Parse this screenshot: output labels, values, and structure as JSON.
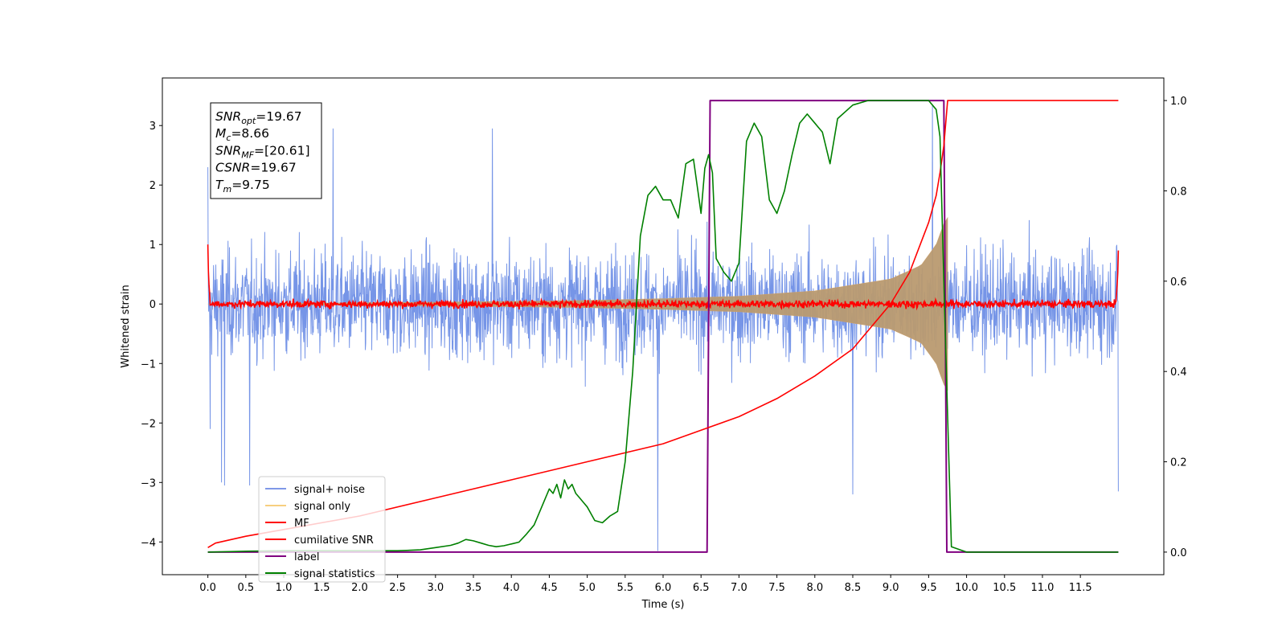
{
  "chart_data": {
    "type": "line",
    "xlabel": "Time (s)",
    "ylabel": "Whitened strain",
    "xlim": [
      -0.6,
      12.6
    ],
    "ylim": [
      -4.55,
      3.8
    ],
    "y2lim": [
      -0.05,
      1.05
    ],
    "x_ticks": [
      0.0,
      0.5,
      1.0,
      1.5,
      2.0,
      2.5,
      3.0,
      3.5,
      4.0,
      4.5,
      5.0,
      5.5,
      6.0,
      6.5,
      7.0,
      7.5,
      8.0,
      8.5,
      9.0,
      9.5,
      10.0,
      10.5,
      11.0,
      11.5
    ],
    "x_tick_labels": [
      "0.0",
      "0.5",
      "1.0",
      "1.5",
      "2.0",
      "2.5",
      "3.0",
      "3.5",
      "4.0",
      "4.5",
      "5.0",
      "5.5",
      "6.0",
      "6.5",
      "7.0",
      "7.5",
      "8.0",
      "8.5",
      "9.0",
      "9.5",
      "10.0",
      "10.5",
      "11.0",
      "11.5"
    ],
    "y_ticks": [
      3,
      2,
      1,
      0,
      -1,
      -2,
      -3,
      -4
    ],
    "y_tick_labels": [
      "3",
      "2",
      "1",
      "0",
      "−1",
      "−2",
      "−3",
      "−4"
    ],
    "y2_ticks": [
      1.0,
      0.8,
      0.6,
      0.4,
      0.2,
      0.0
    ],
    "y2_tick_labels": [
      "1.0",
      "0.8",
      "0.6",
      "0.4",
      "0.2",
      "0.0"
    ],
    "legend_position": "lower-left",
    "grid": false,
    "annotation_box": [
      {
        "sym": "SNR",
        "sub": "opt",
        "value": "=19.67"
      },
      {
        "sym": "M",
        "sub": "c",
        "value": "=8.66"
      },
      {
        "sym": "SNR",
        "sub": "MF",
        "value": "=[20.61]"
      },
      {
        "sym": "CSNR",
        "sub": "",
        "value": "=19.67"
      },
      {
        "sym": "T",
        "sub": "m",
        "value": "=9.75"
      }
    ],
    "series": [
      {
        "name": "signal+ noise",
        "color": "#6f8fe6",
        "axis": "left",
        "kind": "noise",
        "x_range": [
          0.0,
          12.0
        ],
        "envelope_typical": [
          -1.6,
          1.6
        ],
        "extremes": [
          [
            0.0,
            2.3
          ],
          [
            0.03,
            -2.1
          ],
          [
            0.18,
            -3.0
          ],
          [
            0.22,
            -3.05
          ],
          [
            0.55,
            -3.05
          ],
          [
            1.65,
            2.95
          ],
          [
            3.75,
            2.95
          ],
          [
            5.93,
            3.35
          ],
          [
            5.93,
            -4.15
          ],
          [
            9.55,
            3.35
          ],
          [
            8.5,
            -3.2
          ],
          [
            12.0,
            -3.15
          ]
        ]
      },
      {
        "name": "signal only",
        "color": "#f5c261",
        "axis": "left",
        "kind": "chirp",
        "x_range": [
          0.0,
          9.75
        ],
        "envelope": [
          [
            0.0,
            0.0
          ],
          [
            3.0,
            0.03
          ],
          [
            5.0,
            0.06
          ],
          [
            6.0,
            0.09
          ],
          [
            7.0,
            0.13
          ],
          [
            8.0,
            0.22
          ],
          [
            9.0,
            0.42
          ],
          [
            9.4,
            0.65
          ],
          [
            9.6,
            1.0
          ],
          [
            9.7,
            1.35
          ],
          [
            9.75,
            1.45
          ]
        ]
      },
      {
        "name": "MF",
        "color": "#ff0000",
        "axis": "left",
        "kind": "mf",
        "x": [
          0.0,
          0.01,
          0.03,
          11.97,
          11.99,
          12.0
        ],
        "y": [
          1.0,
          0.4,
          0.05,
          0.05,
          0.4,
          0.9
        ],
        "noise_amplitude": 0.05
      },
      {
        "name": "cumilative SNR",
        "color": "#ff0000",
        "axis": "right",
        "x": [
          0.0,
          0.1,
          0.5,
          1.0,
          2.0,
          3.0,
          4.0,
          5.0,
          6.0,
          6.5,
          7.0,
          7.5,
          8.0,
          8.5,
          9.0,
          9.25,
          9.5,
          9.6,
          9.65,
          9.7,
          9.75,
          12.0
        ],
        "y": [
          0.01,
          0.02,
          0.035,
          0.05,
          0.08,
          0.12,
          0.16,
          0.2,
          0.24,
          0.27,
          0.3,
          0.34,
          0.39,
          0.45,
          0.55,
          0.62,
          0.73,
          0.79,
          0.84,
          0.9,
          1.0,
          1.0
        ]
      },
      {
        "name": "label",
        "color": "#800080",
        "axis": "right",
        "x": [
          0.0,
          6.58,
          6.62,
          9.7,
          9.74,
          12.0
        ],
        "y": [
          0.0,
          0.0,
          1.0,
          1.0,
          0.0,
          0.0
        ]
      },
      {
        "name": "signal statistics",
        "color": "#008000",
        "axis": "right",
        "x": [
          0.0,
          0.5,
          1.0,
          1.5,
          2.0,
          2.5,
          2.8,
          3.0,
          3.2,
          3.3,
          3.4,
          3.5,
          3.6,
          3.7,
          3.8,
          3.9,
          4.0,
          4.1,
          4.2,
          4.3,
          4.4,
          4.5,
          4.55,
          4.6,
          4.65,
          4.7,
          4.75,
          4.8,
          4.85,
          4.9,
          4.95,
          5.0,
          5.1,
          5.2,
          5.3,
          5.4,
          5.5,
          5.6,
          5.7,
          5.8,
          5.9,
          6.0,
          6.1,
          6.2,
          6.3,
          6.4,
          6.5,
          6.55,
          6.6,
          6.65,
          6.7,
          6.8,
          6.9,
          7.0,
          7.1,
          7.2,
          7.3,
          7.4,
          7.5,
          7.6,
          7.7,
          7.8,
          7.9,
          8.0,
          8.1,
          8.2,
          8.3,
          8.5,
          8.7,
          9.0,
          9.3,
          9.5,
          9.6,
          9.65,
          9.7,
          9.75,
          9.8,
          10.0,
          12.0
        ],
        "y": [
          0.0,
          0.002,
          0.003,
          0.003,
          0.003,
          0.003,
          0.005,
          0.01,
          0.015,
          0.02,
          0.028,
          0.025,
          0.02,
          0.015,
          0.012,
          0.014,
          0.018,
          0.022,
          0.04,
          0.06,
          0.1,
          0.14,
          0.13,
          0.15,
          0.12,
          0.16,
          0.14,
          0.15,
          0.13,
          0.12,
          0.11,
          0.1,
          0.07,
          0.065,
          0.08,
          0.09,
          0.2,
          0.4,
          0.7,
          0.79,
          0.81,
          0.78,
          0.78,
          0.74,
          0.86,
          0.87,
          0.75,
          0.85,
          0.88,
          0.84,
          0.65,
          0.62,
          0.6,
          0.64,
          0.91,
          0.95,
          0.92,
          0.78,
          0.75,
          0.8,
          0.88,
          0.95,
          0.97,
          0.95,
          0.93,
          0.86,
          0.96,
          0.99,
          1.0,
          1.0,
          1.0,
          1.0,
          0.98,
          0.92,
          0.6,
          0.3,
          0.012,
          0.0,
          0.0
        ]
      }
    ]
  }
}
